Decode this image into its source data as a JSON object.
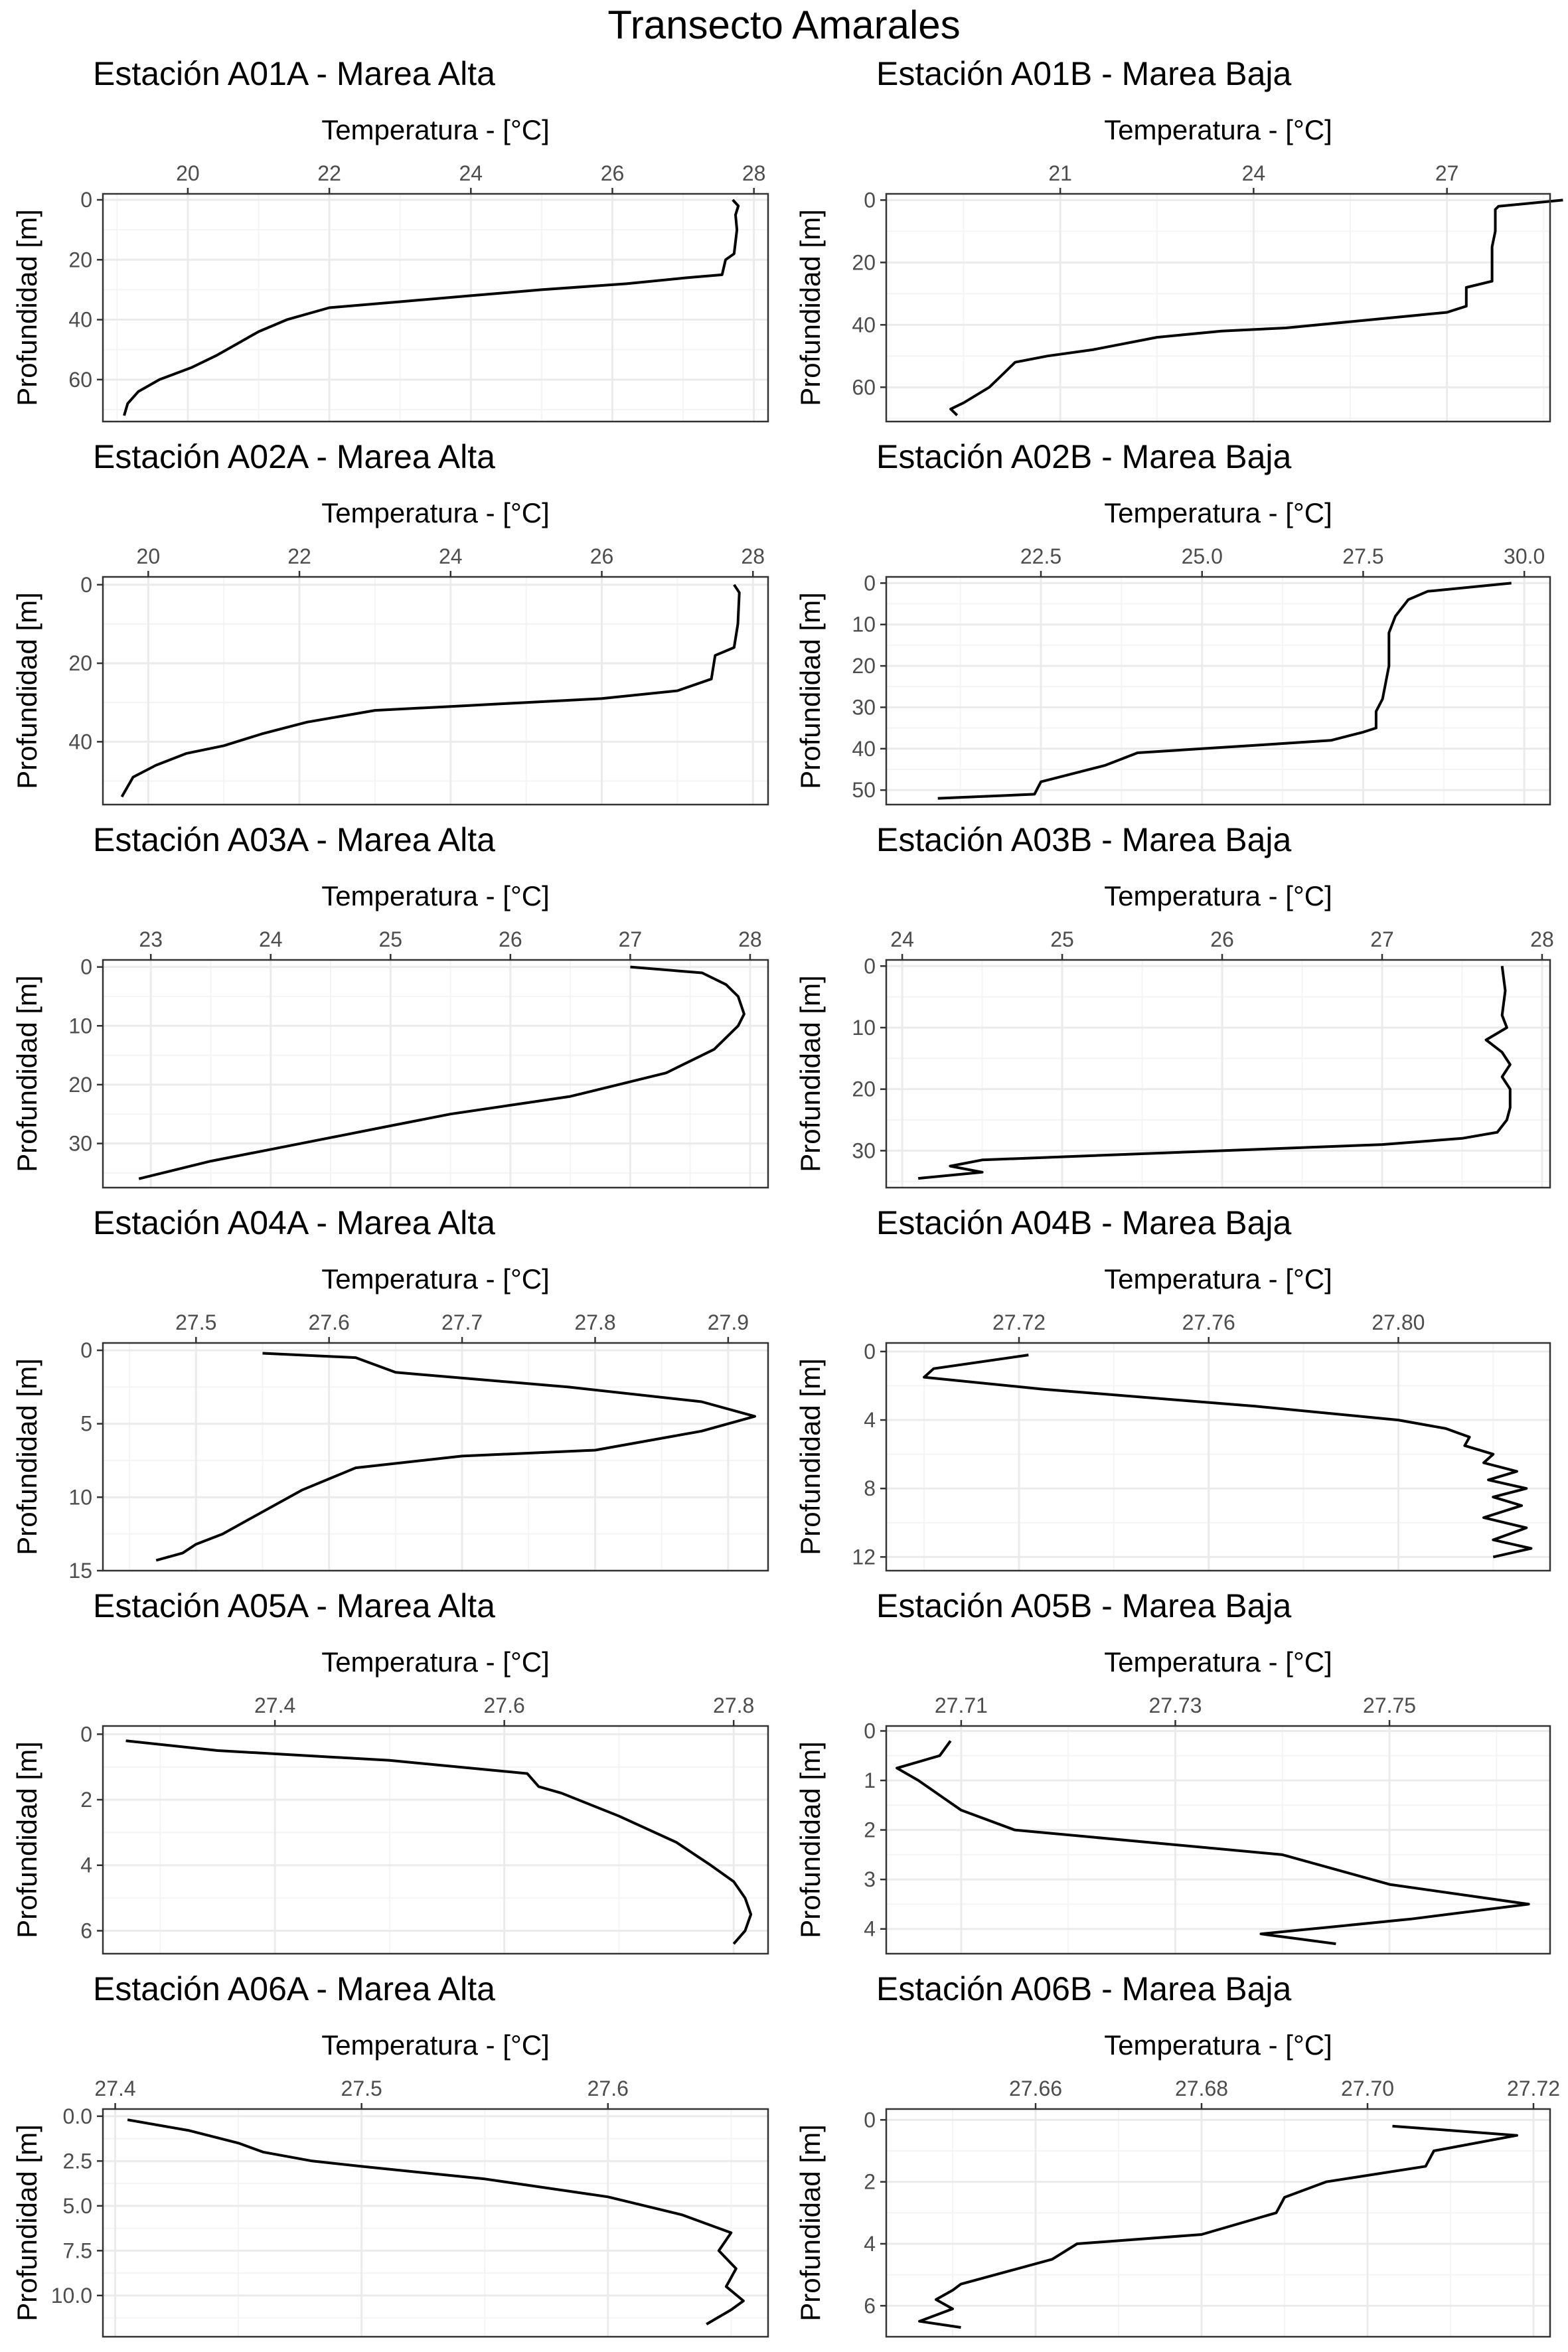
{
  "title": "Transecto Amarales",
  "colors": {
    "line": "#000000",
    "grid_major": "#ebebeb",
    "grid_minor": "#f4f4f4",
    "panel_border": "#333333",
    "text": "#000000",
    "tick_text": "#4d4d4d"
  },
  "chart_data": [
    {
      "type": "line",
      "title": "Estación A01A - Marea Alta",
      "xlabel": "Temperatura - [°C]",
      "ylabel": "Profundidad [m]",
      "x_axis_position": "top",
      "y_reversed": true,
      "grid": true,
      "xlim": [
        18.8,
        28.2
      ],
      "ylim": [
        -2,
        74
      ],
      "xticks": [
        20,
        22,
        24,
        26,
        28
      ],
      "yticks": [
        0,
        20,
        40,
        60
      ],
      "series": [
        {
          "x": [
            27.7,
            27.78,
            27.74,
            27.76,
            27.72,
            27.6,
            27.55,
            27.05,
            26.2,
            25.0,
            24.0,
            23.0,
            22.0,
            21.4,
            21.0,
            20.7,
            20.4,
            20.05,
            19.6,
            19.3,
            19.15,
            19.1
          ],
          "y": [
            0,
            2,
            5,
            10,
            18,
            20,
            25,
            26,
            28,
            30,
            32,
            34,
            36,
            40,
            44,
            48,
            52,
            56,
            60,
            64,
            68,
            72
          ]
        }
      ]
    },
    {
      "type": "line",
      "title": "Estación A01B - Marea Baja",
      "xlabel": "Temperatura - [°C]",
      "ylabel": "Profundidad [m]",
      "x_axis_position": "top",
      "y_reversed": true,
      "grid": true,
      "xlim": [
        18.3,
        28.6
      ],
      "ylim": [
        -2,
        71
      ],
      "xticks": [
        21,
        24,
        27
      ],
      "yticks": [
        0,
        20,
        40,
        60
      ],
      "series": [
        {
          "x": [
            28.8,
            27.8,
            27.75,
            27.75,
            27.7,
            27.7,
            27.3,
            27.3,
            27.0,
            26.5,
            25.5,
            24.5,
            23.5,
            22.5,
            21.5,
            20.8,
            20.3,
            20.1,
            19.9,
            19.5,
            19.3,
            19.4
          ],
          "y": [
            0,
            2,
            3,
            10,
            15,
            26,
            28,
            34,
            36,
            37,
            39,
            41,
            42,
            44,
            48,
            50,
            52,
            56,
            60,
            65,
            67,
            69
          ]
        }
      ]
    },
    {
      "type": "line",
      "title": "Estación A02A - Marea Alta",
      "xlabel": "Temperatura - [°C]",
      "ylabel": "Profundidad [m]",
      "x_axis_position": "top",
      "y_reversed": true,
      "grid": true,
      "xlim": [
        19.4,
        28.2
      ],
      "ylim": [
        -2,
        56
      ],
      "xticks": [
        20,
        22,
        24,
        26,
        28
      ],
      "yticks": [
        0,
        20,
        40
      ],
      "series": [
        {
          "x": [
            27.75,
            27.82,
            27.8,
            27.75,
            27.5,
            27.45,
            27.0,
            26.0,
            25.0,
            24.0,
            23.0,
            22.1,
            21.5,
            21.0,
            20.5,
            20.1,
            19.8,
            19.65
          ],
          "y": [
            0,
            2,
            10,
            16,
            18,
            24,
            27,
            29,
            30,
            31,
            32,
            35,
            38,
            41,
            43,
            46,
            49,
            54
          ]
        }
      ]
    },
    {
      "type": "line",
      "title": "Estación A02B - Marea Baja",
      "xlabel": "Temperatura - [°C]",
      "ylabel": "Profundidad [m]",
      "x_axis_position": "top",
      "y_reversed": true,
      "grid": true,
      "xlim": [
        20.1,
        30.4
      ],
      "ylim": [
        -1.5,
        53.5
      ],
      "xticks": [
        22.5,
        25.0,
        27.5,
        30.0
      ],
      "yticks": [
        0,
        10,
        20,
        30,
        40,
        50
      ],
      "series": [
        {
          "x": [
            29.8,
            28.5,
            28.2,
            28.0,
            27.9,
            27.9,
            27.8,
            27.7,
            27.7,
            27.5,
            27.0,
            26.0,
            25.0,
            24.0,
            23.5,
            22.5,
            22.4,
            20.9
          ],
          "y": [
            0,
            2,
            4,
            8,
            12,
            20,
            28,
            31,
            35,
            36,
            38,
            39,
            40,
            41,
            44,
            48,
            51,
            52
          ]
        }
      ]
    },
    {
      "type": "line",
      "title": "Estación A03A - Marea Alta",
      "xlabel": "Temperatura - [°C]",
      "ylabel": "Profundidad [m]",
      "x_axis_position": "top",
      "y_reversed": true,
      "grid": true,
      "xlim": [
        22.6,
        28.15
      ],
      "ylim": [
        -1.2,
        37.5
      ],
      "xticks": [
        23,
        24,
        25,
        26,
        27,
        28
      ],
      "yticks": [
        0,
        10,
        20,
        30
      ],
      "series": [
        {
          "x": [
            27.0,
            27.6,
            27.8,
            27.9,
            27.95,
            27.9,
            27.7,
            27.5,
            27.3,
            26.9,
            26.5,
            26.0,
            25.5,
            25.0,
            24.5,
            24.0,
            23.5,
            23.1,
            22.9
          ],
          "y": [
            0,
            1,
            3,
            5,
            8,
            10,
            14,
            16,
            18,
            20,
            22,
            23.5,
            25,
            27,
            29,
            31,
            33,
            35,
            36
          ]
        }
      ]
    },
    {
      "type": "line",
      "title": "Estación A03B - Marea Baja",
      "xlabel": "Temperatura - [°C]",
      "ylabel": "Profundidad [m]",
      "x_axis_position": "top",
      "y_reversed": true,
      "grid": true,
      "xlim": [
        23.9,
        28.05
      ],
      "ylim": [
        -1,
        36
      ],
      "xticks": [
        24,
        25,
        26,
        27,
        28
      ],
      "yticks": [
        0,
        10,
        20,
        30
      ],
      "series": [
        {
          "x": [
            27.75,
            27.77,
            27.75,
            27.78,
            27.65,
            27.75,
            27.8,
            27.75,
            27.8,
            27.8,
            27.78,
            27.72,
            27.5,
            27.0,
            26.0,
            25.0,
            24.5,
            24.3,
            24.5,
            24.1
          ],
          "y": [
            0,
            4,
            8,
            10,
            12,
            14,
            16,
            18,
            20,
            23,
            25,
            27,
            28,
            29,
            30,
            31,
            31.5,
            32.5,
            33.5,
            34.5
          ]
        }
      ]
    },
    {
      "type": "line",
      "title": "Estación A04A - Marea Alta",
      "xlabel": "Temperatura - [°C]",
      "ylabel": "Profundidad [m]",
      "x_axis_position": "top",
      "y_reversed": true,
      "grid": true,
      "xlim": [
        27.43,
        27.93
      ],
      "ylim": [
        -0.5,
        15
      ],
      "xticks": [
        27.5,
        27.6,
        27.7,
        27.8,
        27.9
      ],
      "yticks": [
        0,
        5,
        10,
        15
      ],
      "series": [
        {
          "x": [
            27.55,
            27.62,
            27.65,
            27.78,
            27.88,
            27.92,
            27.88,
            27.8,
            27.7,
            27.62,
            27.58,
            27.56,
            27.54,
            27.52,
            27.5,
            27.49,
            27.47
          ],
          "y": [
            0.2,
            0.5,
            1.5,
            2.5,
            3.5,
            4.5,
            5.5,
            6.8,
            7.2,
            8.0,
            9.5,
            10.5,
            11.5,
            12.5,
            13.2,
            13.8,
            14.3
          ]
        }
      ]
    },
    {
      "type": "line",
      "title": "Estación A04B - Marea Baja",
      "xlabel": "Temperatura - [°C]",
      "ylabel": "Profundidad [m]",
      "x_axis_position": "top",
      "y_reversed": true,
      "grid": true,
      "xlim": [
        27.692,
        27.832
      ],
      "ylim": [
        -0.5,
        12.8
      ],
      "xticks": [
        27.72,
        27.76,
        27.8
      ],
      "yticks": [
        0,
        4,
        8,
        12
      ],
      "series": [
        {
          "x": [
            27.722,
            27.702,
            27.7,
            27.725,
            27.77,
            27.8,
            27.81,
            27.815,
            27.814,
            27.82,
            27.818,
            27.825,
            27.819,
            27.827,
            27.82,
            27.826,
            27.818,
            27.827,
            27.82,
            27.828,
            27.82
          ],
          "y": [
            0.2,
            1.0,
            1.5,
            2.2,
            3.2,
            4.0,
            4.5,
            5.0,
            5.5,
            6.0,
            6.5,
            7.0,
            7.5,
            8.0,
            8.5,
            9.0,
            9.7,
            10.3,
            11.0,
            11.5,
            12.0
          ]
        }
      ]
    },
    {
      "type": "line",
      "title": "Estación A05A - Marea Alta",
      "xlabel": "Temperatura - [°C]",
      "ylabel": "Profundidad [m]",
      "x_axis_position": "top",
      "y_reversed": true,
      "grid": true,
      "xlim": [
        27.25,
        27.83
      ],
      "ylim": [
        -0.25,
        6.7
      ],
      "xticks": [
        27.4,
        27.6,
        27.8
      ],
      "yticks": [
        0,
        2,
        4,
        6
      ],
      "series": [
        {
          "x": [
            27.27,
            27.35,
            27.5,
            27.62,
            27.63,
            27.65,
            27.7,
            27.75,
            27.78,
            27.8,
            27.81,
            27.815,
            27.81,
            27.8
          ],
          "y": [
            0.2,
            0.5,
            0.8,
            1.2,
            1.6,
            1.8,
            2.5,
            3.3,
            4.0,
            4.5,
            5.0,
            5.5,
            6.0,
            6.4
          ]
        }
      ]
    },
    {
      "type": "line",
      "title": "Estación A05B - Marea Baja",
      "xlabel": "Temperatura - [°C]",
      "ylabel": "Profundidad [m]",
      "x_axis_position": "top",
      "y_reversed": true,
      "grid": true,
      "xlim": [
        27.703,
        27.765
      ],
      "ylim": [
        -0.1,
        4.5
      ],
      "xticks": [
        27.71,
        27.73,
        27.75
      ],
      "yticks": [
        0,
        1,
        2,
        3,
        4
      ],
      "series": [
        {
          "x": [
            27.709,
            27.708,
            27.704,
            27.706,
            27.708,
            27.71,
            27.715,
            27.74,
            27.75,
            27.763,
            27.752,
            27.738,
            27.745
          ],
          "y": [
            0.2,
            0.5,
            0.75,
            1.0,
            1.3,
            1.6,
            2.0,
            2.5,
            3.1,
            3.5,
            3.8,
            4.1,
            4.3
          ]
        }
      ]
    },
    {
      "type": "line",
      "title": "Estación A06A - Marea Alta",
      "xlabel": "Temperatura - [°C]",
      "ylabel": "Profundidad [m]",
      "x_axis_position": "top",
      "y_reversed": true,
      "grid": true,
      "xlim": [
        27.395,
        27.665
      ],
      "ylim": [
        -0.4,
        12.3
      ],
      "xticks": [
        27.4,
        27.5,
        27.6
      ],
      "yticks": [
        0.0,
        2.5,
        5.0,
        7.5,
        10.0
      ],
      "series": [
        {
          "x": [
            27.405,
            27.43,
            27.45,
            27.46,
            27.48,
            27.5,
            27.55,
            27.6,
            27.63,
            27.65,
            27.645,
            27.652,
            27.648,
            27.655,
            27.65,
            27.64
          ],
          "y": [
            0.2,
            0.8,
            1.5,
            2.0,
            2.5,
            2.8,
            3.5,
            4.5,
            5.5,
            6.5,
            7.5,
            8.5,
            9.5,
            10.3,
            10.8,
            11.6
          ]
        }
      ]
    },
    {
      "type": "line",
      "title": "Estación A06B - Marea Baja",
      "xlabel": "Temperatura - [°C]",
      "ylabel": "Profundidad [m]",
      "x_axis_position": "top",
      "y_reversed": true,
      "grid": true,
      "xlim": [
        27.642,
        27.722
      ],
      "ylim": [
        -0.35,
        7.0
      ],
      "xticks": [
        27.66,
        27.68,
        27.7,
        27.72
      ],
      "yticks": [
        0,
        2,
        4,
        6
      ],
      "series": [
        {
          "x": [
            27.703,
            27.718,
            27.708,
            27.707,
            27.695,
            27.69,
            27.689,
            27.68,
            27.665,
            27.662,
            27.651,
            27.65,
            27.648,
            27.65,
            27.646,
            27.651
          ],
          "y": [
            0.2,
            0.5,
            1.0,
            1.5,
            2.0,
            2.5,
            3.0,
            3.7,
            4.0,
            4.5,
            5.3,
            5.5,
            5.8,
            6.1,
            6.5,
            6.7
          ]
        }
      ]
    }
  ]
}
